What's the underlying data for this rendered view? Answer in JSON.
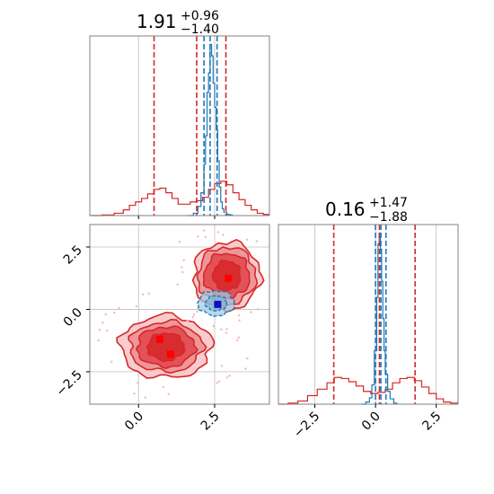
{
  "colors": {
    "red": "#d62728",
    "red_light": "#f2a0a3",
    "blue": "#1f77b4",
    "blue_light": "#9ecae1",
    "marker_blue": "#1010c0",
    "marker_red": "#ff0000",
    "grid": "#bfbfbf",
    "frame": "#808080"
  },
  "chart_data": [
    {
      "panel": "x-marginal",
      "type": "line",
      "title": {
        "main": "1.91",
        "sup": "+0.96",
        "sub": "−1.40"
      },
      "xlim": [
        -1.6,
        4.3
      ],
      "x_gridlines": [
        0.0,
        2.5
      ],
      "series": [
        {
          "color": "red",
          "style": "step",
          "x": [
            -1.6,
            -1.2,
            -0.8,
            -0.5,
            -0.3,
            -0.1,
            0.1,
            0.3,
            0.5,
            0.7,
            0.9,
            1.1,
            1.3,
            1.5,
            1.7,
            1.9,
            2.1,
            2.3,
            2.5,
            2.7,
            2.9,
            3.1,
            3.3,
            3.5,
            3.7,
            3.9,
            4.1,
            4.3
          ],
          "y": [
            0,
            0.5,
            2,
            5,
            9,
            12,
            15,
            19,
            23,
            24,
            20,
            15,
            10,
            10,
            12,
            13,
            16,
            23,
            28,
            30,
            27,
            20,
            14,
            9,
            5,
            2,
            1,
            0
          ]
        },
        {
          "color": "blue",
          "style": "step",
          "x": [
            1.6,
            1.8,
            1.95,
            2.05,
            2.15,
            2.2,
            2.25,
            2.3,
            2.35,
            2.4,
            2.45,
            2.5,
            2.55,
            2.6,
            2.65,
            2.7,
            2.75,
            2.8,
            2.9,
            3.0,
            3.1
          ],
          "y": [
            0,
            2,
            8,
            20,
            45,
            70,
            108,
            125,
            150,
            140,
            116,
            95,
            75,
            48,
            25,
            12,
            6,
            3,
            1,
            0.5,
            0
          ]
        }
      ],
      "quantile_lines": [
        {
          "color": "red",
          "x": [
            0.51,
            1.91,
            2.87
          ]
        },
        {
          "color": "blue",
          "x": [
            2.15,
            2.35,
            2.58
          ]
        }
      ]
    },
    {
      "panel": "joint",
      "type": "scatter",
      "xlim": [
        -1.6,
        4.3
      ],
      "ylim": [
        -3.8,
        3.4
      ],
      "x_ticks": [
        0.0,
        2.5
      ],
      "x_tick_labels": [
        "0.0",
        "2.5"
      ],
      "y_ticks": [
        -2.5,
        0.0,
        2.5
      ],
      "y_tick_labels": [
        "−2.5",
        "0.0",
        "2.5"
      ],
      "red_markers": [
        [
          0.7,
          -1.2
        ],
        [
          1.05,
          -1.8
        ],
        [
          2.95,
          1.25
        ]
      ],
      "blue_marker": [
        2.6,
        0.2
      ],
      "red_blobs": [
        {
          "cx": 0.9,
          "cy": -1.5,
          "levels": [
            [
              1.5,
              1.25
            ],
            [
              1.2,
              1.0
            ],
            [
              0.95,
              0.8
            ],
            [
              0.6,
              0.55
            ]
          ]
        },
        {
          "cx": 2.9,
          "cy": 1.35,
          "levels": [
            [
              1.1,
              1.35
            ],
            [
              0.95,
              1.15
            ],
            [
              0.75,
              0.9
            ],
            [
              0.45,
              0.6
            ]
          ]
        }
      ],
      "blue_blob": {
        "cx": 2.55,
        "cy": 0.25,
        "levels": [
          [
            0.6,
            0.5
          ],
          [
            0.35,
            0.3
          ]
        ]
      }
    },
    {
      "panel": "y-marginal",
      "type": "line",
      "title": {
        "main": "0.16",
        "sup": "+1.47",
        "sub": "−1.88"
      },
      "xlim": [
        -4.0,
        3.4
      ],
      "x_ticks": [
        -2.5,
        0.0,
        2.5
      ],
      "x_tick_labels": [
        "−2.5",
        "0.0",
        "2.5"
      ],
      "series": [
        {
          "color": "red",
          "style": "step",
          "x": [
            -4.0,
            -3.6,
            -3.2,
            -2.8,
            -2.4,
            -2.0,
            -1.7,
            -1.4,
            -1.1,
            -0.8,
            -0.5,
            -0.2,
            0.1,
            0.4,
            0.7,
            1.0,
            1.3,
            1.6,
            1.9,
            2.2,
            2.5,
            2.8,
            3.1,
            3.4
          ],
          "y": [
            0,
            1,
            3,
            8,
            14,
            20,
            25,
            24,
            21,
            17,
            12,
            10,
            11,
            14,
            20,
            24,
            25,
            22,
            16,
            10,
            5,
            2,
            1,
            0
          ]
        },
        {
          "color": "blue",
          "style": "step",
          "x": [
            -0.6,
            -0.4,
            -0.25,
            -0.15,
            -0.05,
            0.05,
            0.1,
            0.15,
            0.2,
            0.25,
            0.3,
            0.35,
            0.4,
            0.5,
            0.6,
            0.75,
            0.9
          ],
          "y": [
            0,
            2,
            6,
            18,
            50,
            100,
            150,
            160,
            145,
            115,
            80,
            50,
            28,
            12,
            5,
            1,
            0
          ]
        }
      ],
      "quantile_lines": [
        {
          "color": "red",
          "x": [
            -1.72,
            0.16,
            1.63
          ]
        },
        {
          "color": "blue",
          "x": [
            0.0,
            0.22,
            0.43
          ]
        }
      ]
    }
  ]
}
